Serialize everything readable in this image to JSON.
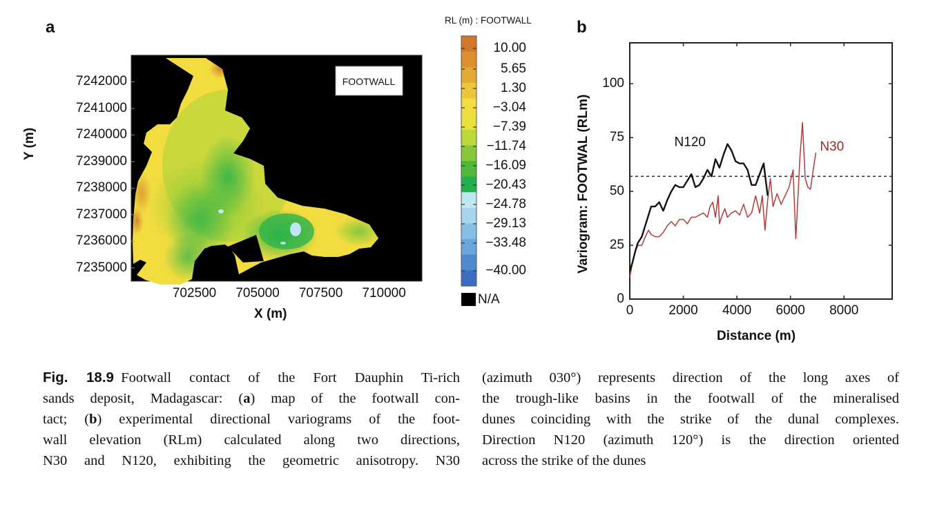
{
  "figure": {
    "panel_a_letter": "a",
    "panel_b_letter": "b"
  },
  "chart_data": [
    {
      "type": "heatmap",
      "title": "FOOTWALL",
      "xlabel": "X (m)",
      "ylabel": "Y (m)",
      "x_ticks": [
        "702500",
        "705000",
        "707500",
        "710000"
      ],
      "y_ticks": [
        "7242000",
        "7241000",
        "7240000",
        "7239000",
        "7238000",
        "7237000",
        "7236000",
        "7235000"
      ],
      "xlim": [
        700000,
        711500
      ],
      "ylim": [
        7234500,
        7243000
      ],
      "colorbar": {
        "title": "RL (m) : FOOTWALL",
        "labels": [
          "10.00",
          "5.65",
          "1.30",
          "−3.04",
          "−7.39",
          "−11.74",
          "−16.09",
          "−20.43",
          "−24.78",
          "−29.13",
          "−33.48",
          "−40.00"
        ],
        "colors": [
          "#d2772a",
          "#dd8f2d",
          "#e4a935",
          "#ecc63c",
          "#f2dd40",
          "#e8e13c",
          "#b9d83a",
          "#86c83a",
          "#4fb83b",
          "#22b04a",
          "#bfe6f2",
          "#a5d6ee",
          "#86bfe6",
          "#6aa6dc",
          "#4f89cf",
          "#3d6dc2"
        ],
        "na_label": "N/A",
        "na_color": "#000000"
      },
      "background_color": "#000000",
      "label_box": "FOOTWALL"
    },
    {
      "type": "line",
      "xlabel": "Distance (m)",
      "ylabel": "Variogram: FOOTWAL (RLm)",
      "xlim": [
        0,
        9800
      ],
      "ylim": [
        0,
        119
      ],
      "x_ticks": [
        0,
        2000,
        4000,
        6000,
        8000
      ],
      "y_ticks": [
        0,
        25,
        50,
        75,
        100
      ],
      "grid": false,
      "reference_line": {
        "y": 57,
        "style": "dashed",
        "color": "#333333"
      },
      "series": [
        {
          "name": "N120",
          "color": "#111111",
          "x": [
            0,
            100,
            200,
            300,
            450,
            550,
            650,
            800,
            950,
            1100,
            1250,
            1400,
            1550,
            1700,
            1850,
            2000,
            2150,
            2300,
            2450,
            2600,
            2750,
            2900,
            3050,
            3200,
            3350,
            3500,
            3650,
            3800,
            3950,
            4100,
            4250,
            4400,
            4550,
            4700,
            4850,
            5000,
            5150
          ],
          "y": [
            13,
            17,
            22,
            26,
            29,
            33,
            37,
            43,
            43,
            45,
            41,
            46,
            50,
            53,
            52,
            52,
            55,
            58,
            52,
            53,
            56,
            60,
            57,
            65,
            61,
            67,
            72,
            69,
            64,
            63,
            63,
            60,
            53,
            53,
            58,
            63,
            48
          ]
        },
        {
          "name": "N30",
          "color": "#b23a3a",
          "x": [
            0,
            100,
            200,
            300,
            450,
            550,
            700,
            800,
            950,
            1100,
            1250,
            1400,
            1550,
            1700,
            1850,
            2000,
            2150,
            2300,
            2450,
            2600,
            2750,
            2900,
            3000,
            3100,
            3200,
            3300,
            3350,
            3450,
            3550,
            3650,
            3800,
            3950,
            4100,
            4250,
            4400,
            4550,
            4700,
            4850,
            4950,
            5050,
            5150,
            5250,
            5350,
            5500,
            5650,
            5800,
            5950,
            6100,
            6200,
            6300,
            6350,
            6450,
            6550,
            6650,
            6750,
            6850,
            6950
          ],
          "y": [
            10,
            17,
            22,
            25,
            25,
            28,
            32,
            30,
            29,
            29,
            31,
            34,
            36,
            34,
            37,
            37,
            35,
            38,
            38,
            39,
            40,
            38,
            43,
            45,
            38,
            48,
            35,
            39,
            42,
            38,
            40,
            41,
            39,
            44,
            38,
            40,
            48,
            40,
            48,
            32,
            46,
            56,
            43,
            49,
            44,
            48,
            52,
            60,
            28,
            52,
            65,
            82,
            56,
            52,
            51,
            60,
            68
          ]
        }
      ],
      "annotations": [
        {
          "text": "N120",
          "x": 2250,
          "y": 71,
          "color": "#111111"
        },
        {
          "text": "N30",
          "x": 7550,
          "y": 69,
          "color": "#9e2626"
        }
      ]
    }
  ],
  "caption": {
    "label": "Fig. 18.9",
    "left_lines": [
      [
        "Footwall contact of the Fort Dauphin Ti-rich"
      ],
      [
        "sands deposit, Madagascar: (",
        {
          "b": "a"
        },
        ") map of the footwall con-"
      ],
      [
        "tact; (",
        {
          "b": "b"
        },
        ") experimental directional variograms of the foot-"
      ],
      [
        "wall elevation (RLm) calculated along two directions,"
      ],
      [
        "N30 and N120, exhibiting the geometric anisotropy. N30"
      ]
    ],
    "right_lines": [
      "(azimuth 030°) represents direction of the long axes of",
      "the trough-like basins in the footwall of the mineralised",
      "dunes coinciding with the strike of the dunal complexes.",
      "Direction N120 (azimuth 120°) is the direction oriented",
      "across the strike of the dunes"
    ]
  }
}
